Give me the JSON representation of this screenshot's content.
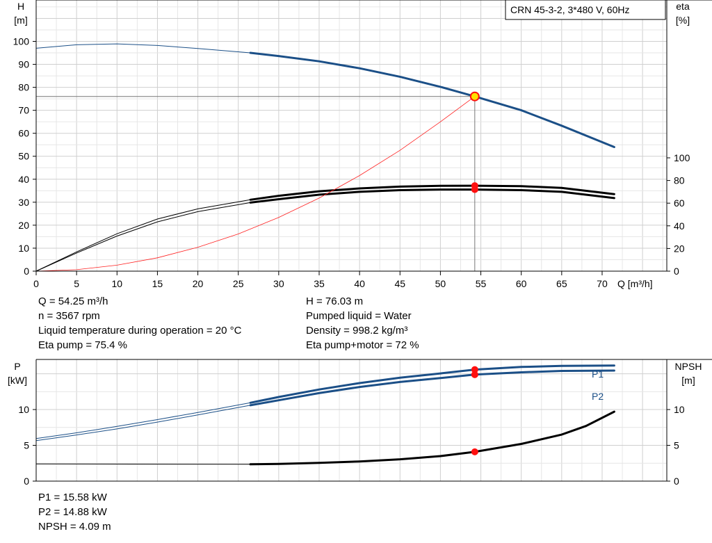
{
  "chart_data": [
    {
      "type": "line",
      "title": "CRN 45-3-2, 3*480 V, 60Hz",
      "xlabel": "Q [m³/h]",
      "ylabel_left": [
        "H",
        "[m]"
      ],
      "ylabel_right": [
        "eta",
        "[%]"
      ],
      "xlim": [
        0,
        78
      ],
      "ylim": [
        0,
        118
      ],
      "y2lim": [
        -60,
        118
      ],
      "xticks": [
        0,
        5,
        10,
        15,
        20,
        25,
        30,
        35,
        40,
        45,
        50,
        55,
        60,
        65,
        70
      ],
      "yticks": [
        0,
        10,
        20,
        30,
        40,
        50,
        60,
        70,
        80,
        90,
        100
      ],
      "y2ticks": [
        0,
        20,
        40,
        60,
        80,
        100
      ],
      "grid": true,
      "series": [
        {
          "key": "H",
          "color": "#1b4f87",
          "thin_x": [
            0,
            5,
            10,
            15,
            20,
            26.5
          ],
          "thin_y": [
            97,
            98.5,
            98.9,
            98.2,
            96.9,
            95
          ],
          "x": [
            26.5,
            30,
            35,
            40,
            45,
            50,
            54.25,
            60,
            65,
            71.5
          ],
          "y": [
            95,
            93.6,
            91.3,
            88.3,
            84.6,
            80.2,
            76.03,
            70,
            63.3,
            54
          ]
        },
        {
          "key": "eta_pump",
          "color": "#000000",
          "thin_x": [
            0,
            5,
            10,
            15,
            20,
            26.5
          ],
          "thin_y": [
            0,
            17,
            33,
            46,
            55,
            63
          ],
          "x": [
            26.5,
            30,
            35,
            40,
            45,
            50,
            54.25,
            60,
            65,
            71.5
          ],
          "y": [
            63,
            66.5,
            70.5,
            73,
            74.6,
            75.3,
            75.4,
            75,
            73.5,
            68
          ]
        },
        {
          "key": "eta_pump_motor",
          "color": "#000000",
          "thin_x": [
            0,
            5,
            10,
            15,
            20,
            26.5
          ],
          "thin_y": [
            0,
            16,
            31,
            43.5,
            52.5,
            60.5
          ],
          "x": [
            26.5,
            30,
            35,
            40,
            45,
            50,
            54.25,
            60,
            65,
            71.5
          ],
          "y": [
            60.5,
            63.5,
            67.5,
            70,
            71.5,
            72,
            72,
            71.5,
            70,
            64.5
          ]
        },
        {
          "key": "system",
          "color": "#ff2020",
          "x": [
            0,
            5,
            10,
            15,
            20,
            25,
            30,
            35,
            40,
            45,
            50,
            54.25
          ],
          "y": [
            0,
            0.65,
            2.6,
            5.8,
            10.4,
            16.2,
            23.4,
            31.8,
            41.6,
            52.6,
            65,
            76.03
          ]
        }
      ],
      "duty_point": {
        "q": 54.25,
        "h": 76.03,
        "eta_pump": 75.4,
        "eta_pump_motor": 72
      }
    },
    {
      "type": "line",
      "ylabel_left": [
        "P",
        "[kW]"
      ],
      "ylabel_right": [
        "NPSH",
        "[m]"
      ],
      "xlim": [
        0,
        78
      ],
      "ylim": [
        0,
        17
      ],
      "yticks": [
        0,
        5,
        10
      ],
      "y2ticks": [
        0,
        5,
        10
      ],
      "grid": true,
      "series": [
        {
          "name": "P1",
          "color": "#1b4f87",
          "thin_x": [
            0,
            5,
            10,
            15,
            20,
            26.5
          ],
          "thin_y": [
            5.95,
            6.75,
            7.65,
            8.6,
            9.6,
            10.95
          ],
          "x": [
            26.5,
            30,
            35,
            40,
            45,
            50,
            54.25,
            60,
            65,
            71.5
          ],
          "y": [
            10.95,
            11.75,
            12.8,
            13.7,
            14.45,
            15.05,
            15.58,
            15.95,
            16.1,
            16.15
          ]
        },
        {
          "name": "P2",
          "color": "#1b4f87",
          "thin_x": [
            0,
            5,
            10,
            15,
            20,
            26.5
          ],
          "thin_y": [
            5.65,
            6.45,
            7.3,
            8.25,
            9.25,
            10.6
          ],
          "x": [
            26.5,
            30,
            35,
            40,
            45,
            50,
            54.25,
            60,
            65,
            71.5
          ],
          "y": [
            10.6,
            11.3,
            12.3,
            13.15,
            13.85,
            14.4,
            14.88,
            15.2,
            15.4,
            15.45
          ]
        },
        {
          "key": "NPSH",
          "color": "#000000",
          "thin_x": [
            0,
            26.5
          ],
          "thin_y": [
            2.4,
            2.35
          ],
          "x": [
            26.5,
            30,
            35,
            40,
            45,
            50,
            54.25,
            60,
            65,
            68,
            71.5
          ],
          "y": [
            2.35,
            2.4,
            2.55,
            2.75,
            3.05,
            3.5,
            4.09,
            5.2,
            6.5,
            7.7,
            9.7
          ]
        }
      ]
    }
  ],
  "readouts": {
    "top_left": [
      "Q = 54.25 m³/h",
      "n = 3567 rpm",
      "Liquid temperature during operation = 20 °C",
      "Eta pump = 75.4 %"
    ],
    "top_right": [
      "H = 76.03 m",
      "Pumped liquid = Water",
      "Density = 998.2 kg/m³",
      "Eta pump+motor = 72 %"
    ],
    "bottom_left": [
      "P1 = 15.58 kW",
      "P2 = 14.88 kW",
      "NPSH = 4.09 m"
    ]
  },
  "colors": {
    "blue_curve": "#1b4f87",
    "system_curve": "#ff2020",
    "marker": "#ff1010",
    "duty_marker_fill": "#ffe000",
    "grid": "#dcdcdc"
  }
}
